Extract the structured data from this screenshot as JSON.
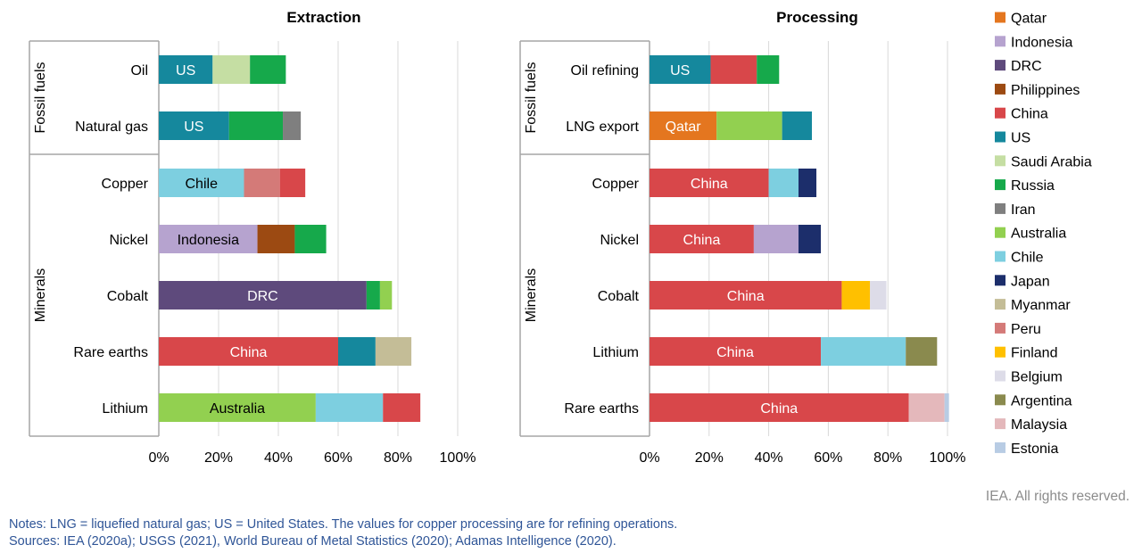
{
  "colors": {
    "Qatar": "#e4761f",
    "Indonesia": "#b6a3cf",
    "DRC": "#5e4a7c",
    "Philippines": "#9c4a12",
    "China": "#d8474a",
    "US": "#15889d",
    "Saudi Arabia": "#c5dea3",
    "Russia": "#16a94b",
    "Iran": "#7f7f7f",
    "Australia": "#92d050",
    "Chile": "#7dcfe0",
    "Japan": "#1c2e6b",
    "Myanmar": "#c4bd97",
    "Peru": "#d47a78",
    "Finland": "#ffc000",
    "Belgium": "#dddce8",
    "Argentina": "#8a8a4e",
    "Malaysia": "#e4b8bb",
    "Estonia": "#b8cce4"
  },
  "legend": [
    "Qatar",
    "Indonesia",
    "DRC",
    "Philippines",
    "China",
    "US",
    "Saudi Arabia",
    "Russia",
    "Iran",
    "Australia",
    "Chile",
    "Japan",
    "Myanmar",
    "Peru",
    "Finland",
    "Belgium",
    "Argentina",
    "Malaysia",
    "Estonia"
  ],
  "chart_data": [
    {
      "type": "bar",
      "orientation": "horizontal",
      "stacked": true,
      "title": "Extraction",
      "xlim": [
        0,
        100
      ],
      "xticks": [
        "0%",
        "20%",
        "40%",
        "60%",
        "80%",
        "100%"
      ],
      "grid": true,
      "groups": [
        {
          "label": "Fossil fuels",
          "rows": [
            {
              "category": "Oil",
              "segments": [
                {
                  "country": "US",
                  "value": 18,
                  "label": "US"
                },
                {
                  "country": "Saudi Arabia",
                  "value": 12.5
                },
                {
                  "country": "Russia",
                  "value": 12
                }
              ]
            },
            {
              "category": "Natural gas",
              "segments": [
                {
                  "country": "US",
                  "value": 23.5,
                  "label": "US"
                },
                {
                  "country": "Russia",
                  "value": 18
                },
                {
                  "country": "Iran",
                  "value": 6
                }
              ]
            }
          ]
        },
        {
          "label": "Minerals",
          "rows": [
            {
              "category": "Copper",
              "segments": [
                {
                  "country": "Chile",
                  "value": 28.5,
                  "label": "Chile"
                },
                {
                  "country": "Peru",
                  "value": 12
                },
                {
                  "country": "China",
                  "value": 8.5
                }
              ]
            },
            {
              "category": "Nickel",
              "segments": [
                {
                  "country": "Indonesia",
                  "value": 33,
                  "label": "Indonesia"
                },
                {
                  "country": "Philippines",
                  "value": 12.5
                },
                {
                  "country": "Russia",
                  "value": 10.5
                }
              ]
            },
            {
              "category": "Cobalt",
              "segments": [
                {
                  "country": "DRC",
                  "value": 69.5,
                  "label": "DRC"
                },
                {
                  "country": "Russia",
                  "value": 4.5
                },
                {
                  "country": "Australia",
                  "value": 4
                }
              ]
            },
            {
              "category": "Rare earths",
              "segments": [
                {
                  "country": "China",
                  "value": 60,
                  "label": "China"
                },
                {
                  "country": "US",
                  "value": 12.5
                },
                {
                  "country": "Myanmar",
                  "value": 12
                }
              ]
            },
            {
              "category": "Lithium",
              "segments": [
                {
                  "country": "Australia",
                  "value": 52.5,
                  "label": "Australia"
                },
                {
                  "country": "Chile",
                  "value": 22.5
                },
                {
                  "country": "China",
                  "value": 12.5
                }
              ]
            }
          ]
        }
      ]
    },
    {
      "type": "bar",
      "orientation": "horizontal",
      "stacked": true,
      "title": "Processing",
      "xlim": [
        0,
        100
      ],
      "xticks": [
        "0%",
        "20%",
        "40%",
        "60%",
        "80%",
        "100%"
      ],
      "grid": true,
      "groups": [
        {
          "label": "Fossil fuels",
          "rows": [
            {
              "category": "Oil refining",
              "segments": [
                {
                  "country": "US",
                  "value": 20.5,
                  "label": "US"
                },
                {
                  "country": "China",
                  "value": 15.5
                },
                {
                  "country": "Russia",
                  "value": 7.5
                }
              ]
            },
            {
              "category": "LNG export",
              "segments": [
                {
                  "country": "Qatar",
                  "value": 22.5,
                  "label": "Qatar"
                },
                {
                  "country": "Australia",
                  "value": 22
                },
                {
                  "country": "US",
                  "value": 10
                }
              ]
            }
          ]
        },
        {
          "label": "Minerals",
          "rows": [
            {
              "category": "Copper",
              "segments": [
                {
                  "country": "China",
                  "value": 40,
                  "label": "China"
                },
                {
                  "country": "Chile",
                  "value": 10
                },
                {
                  "country": "Japan",
                  "value": 6
                }
              ]
            },
            {
              "category": "Nickel",
              "segments": [
                {
                  "country": "China",
                  "value": 35,
                  "label": "China"
                },
                {
                  "country": "Indonesia",
                  "value": 15
                },
                {
                  "country": "Japan",
                  "value": 7.5
                }
              ]
            },
            {
              "category": "Cobalt",
              "segments": [
                {
                  "country": "China",
                  "value": 64.5,
                  "label": "China"
                },
                {
                  "country": "Finland",
                  "value": 9.5
                },
                {
                  "country": "Belgium",
                  "value": 5.5
                }
              ]
            },
            {
              "category": "Lithium",
              "segments": [
                {
                  "country": "China",
                  "value": 57.5,
                  "label": "China"
                },
                {
                  "country": "Chile",
                  "value": 28.5
                },
                {
                  "country": "Argentina",
                  "value": 10.5
                }
              ]
            },
            {
              "category": "Rare earths",
              "segments": [
                {
                  "country": "China",
                  "value": 87,
                  "label": "China"
                },
                {
                  "country": "Malaysia",
                  "value": 12
                },
                {
                  "country": "Estonia",
                  "value": 1.5
                }
              ]
            }
          ]
        }
      ]
    }
  ],
  "footer": {
    "rights": "IEA. All rights reserved.",
    "notes": "Notes: LNG = liquefied natural gas; US = United States. The values for copper processing are for refining operations.",
    "sources": "Sources: IEA (2020a); USGS (2021), World Bureau of Metal Statistics (2020); Adamas Intelligence (2020)."
  }
}
